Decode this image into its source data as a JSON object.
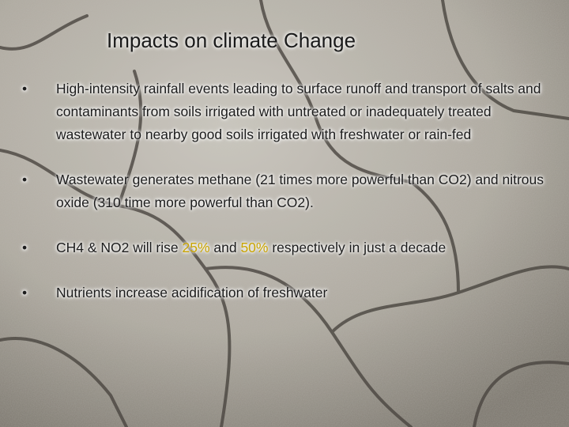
{
  "title": "Impacts on climate Change",
  "bullets": [
    {
      "segments": [
        "High-intensity rainfall events leading to surface runoff and transport of salts and contaminants from soils irrigated with untreated or inadequately treated wastewater to nearby good soils irrigated with freshwater or rain-fed"
      ]
    },
    {
      "segments": [
        "Wastewater generates methane (21 times more powerful than CO2) and nitrous oxide (310 time more powerful than CO2)."
      ]
    },
    {
      "segments": [
        "CH4 & NO2 will rise ",
        "25%",
        " and ",
        "50%",
        " respectively in just a decade"
      ]
    },
    {
      "segments": [
        "Nutrients increase acidification of freshwater"
      ]
    }
  ]
}
